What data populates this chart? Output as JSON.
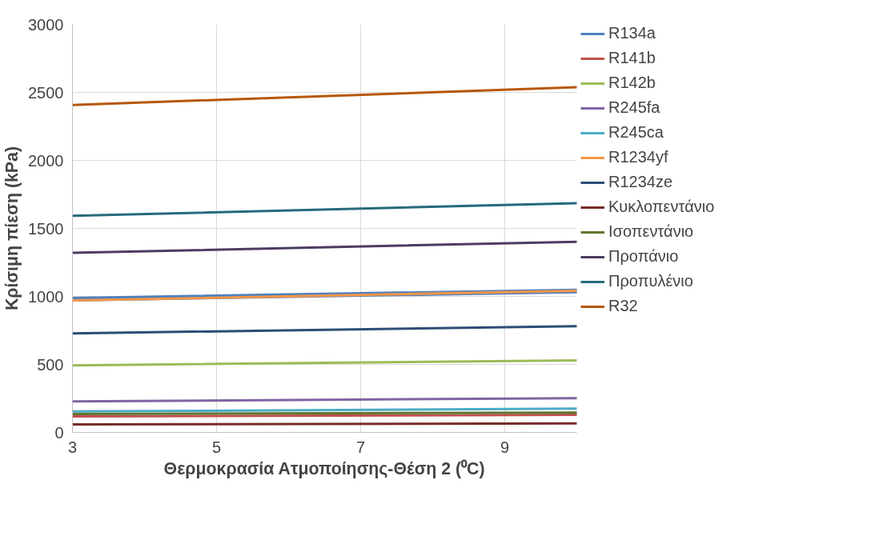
{
  "chart_data": {
    "type": "line",
    "xlabel": "Θερμοκρασία Ατμοποίησης-Θέση 2 (⁰C)",
    "ylabel": "Κρίσιμη πίεση (kPa)",
    "x": [
      3,
      10
    ],
    "xlim": [
      3,
      10
    ],
    "xticks": [
      3,
      5,
      7,
      9
    ],
    "ylim": [
      0,
      3000
    ],
    "yticks": [
      0,
      500,
      1000,
      1500,
      2000,
      2500,
      3000
    ],
    "grid": true,
    "legend": "right",
    "marker": "none",
    "line_style": "solid",
    "series": [
      {
        "name": "R134a",
        "color": "#4f81bd",
        "values": [
          980,
          1040
        ]
      },
      {
        "name": "R141b",
        "color": "#c0504d",
        "values": [
          117,
          129
        ]
      },
      {
        "name": "R142b",
        "color": "#9bbb59",
        "values": [
          493,
          530
        ]
      },
      {
        "name": "R245fa",
        "color": "#8064a2",
        "values": [
          228,
          252
        ]
      },
      {
        "name": "R245ca",
        "color": "#4bacc6",
        "values": [
          154,
          175
        ]
      },
      {
        "name": "R1234yf",
        "color": "#f79646",
        "values": [
          970,
          1041
        ]
      },
      {
        "name": "R1234ze",
        "color": "#2c4d75",
        "values": [
          728,
          781
        ]
      },
      {
        "name": "Κυκλοπεντάνιο",
        "color": "#772c2a",
        "values": [
          59,
          66
        ]
      },
      {
        "name": "Ισοπεντάνιο",
        "color": "#5f7530",
        "values": [
          136,
          146
        ]
      },
      {
        "name": "Προπάνιο",
        "color": "#4d3b62",
        "values": [
          1320,
          1402
        ]
      },
      {
        "name": "Προπυλένιο",
        "color": "#276a7c",
        "values": [
          1592,
          1686
        ]
      },
      {
        "name": "R32",
        "color": "#b65708",
        "values": [
          2408,
          2538
        ]
      }
    ]
  }
}
